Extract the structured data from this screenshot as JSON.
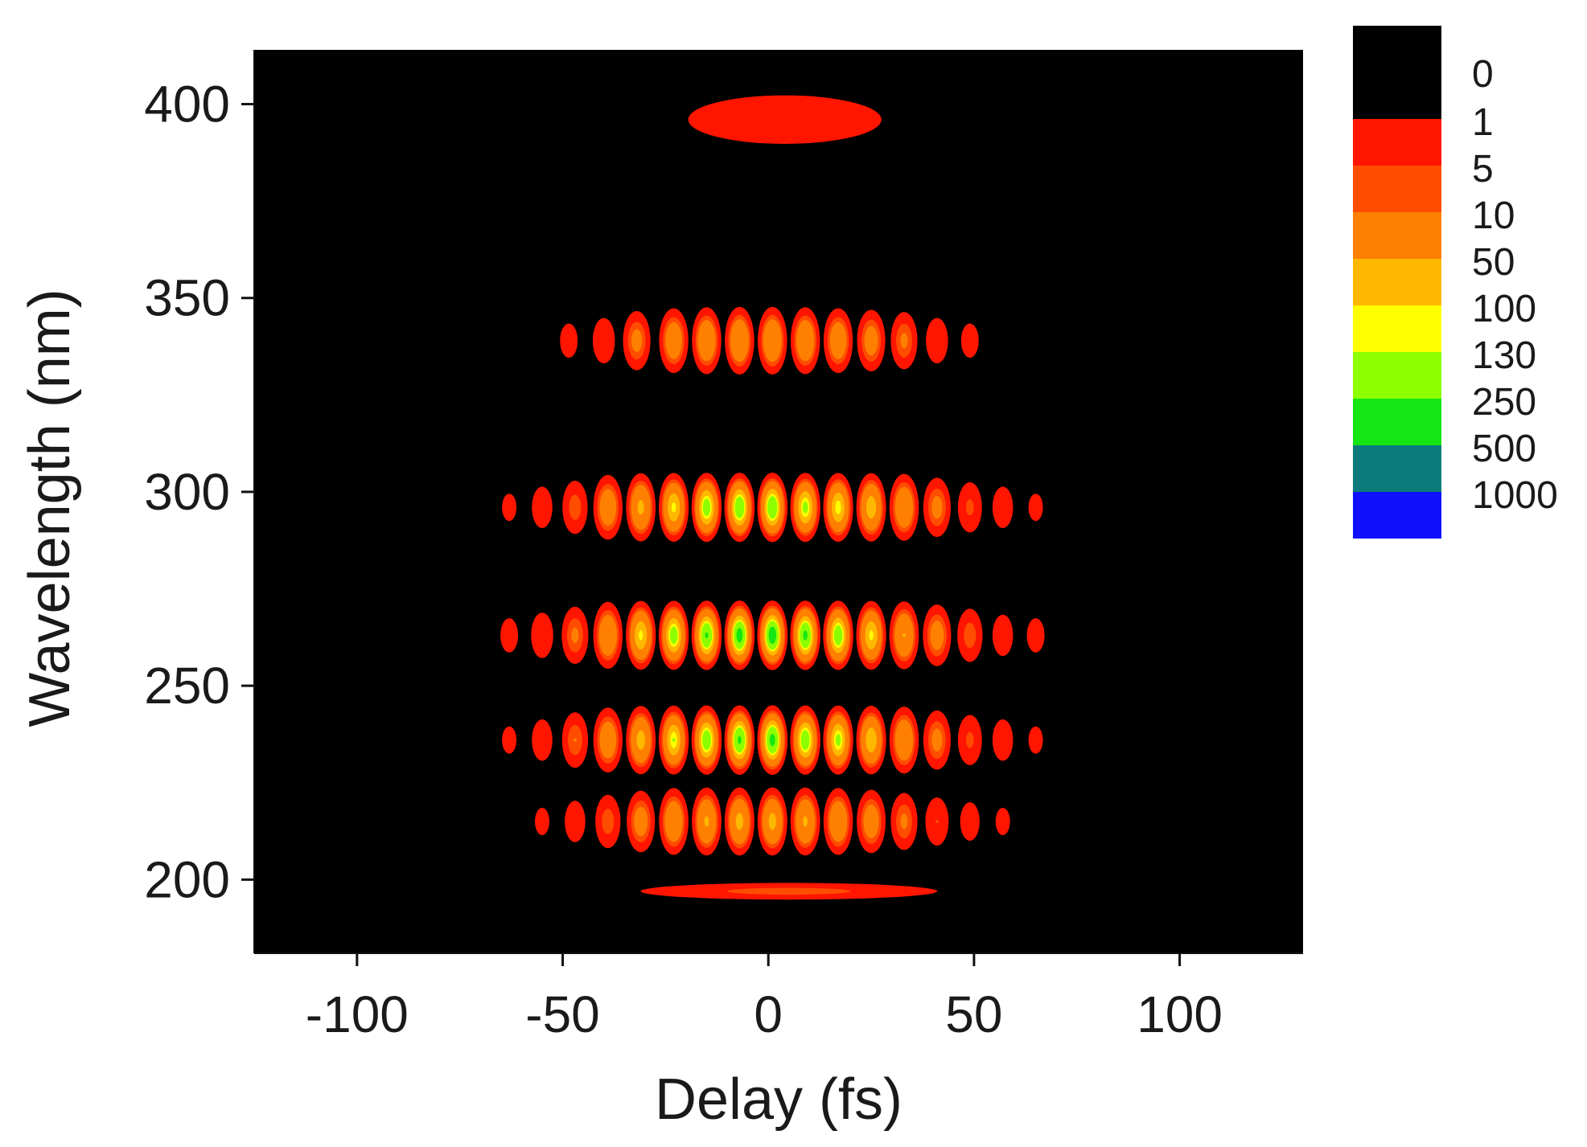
{
  "chart_data": {
    "type": "heatmap",
    "title": "",
    "xlabel": "Delay (fs)",
    "ylabel": "Wavelength (nm)",
    "xlim": [
      -125,
      130
    ],
    "ylim": [
      181,
      414
    ],
    "xticks": [
      -100,
      -50,
      0,
      50,
      100
    ],
    "yticks": [
      200,
      250,
      300,
      350,
      400
    ],
    "xtick_labels": [
      "-100",
      "-50",
      "0",
      "50",
      "100"
    ],
    "ytick_labels": [
      "200",
      "250",
      "300",
      "350",
      "400"
    ],
    "grid": false,
    "background_color": "#000000",
    "colorbar": {
      "position": "right",
      "boundaries": [
        "0",
        "1",
        "5",
        "10",
        "50",
        "100",
        "130",
        "250",
        "500",
        "1000"
      ],
      "level_colors": [
        "#000000",
        "#ff1500",
        "#ff4d00",
        "#ff8000",
        "#ffb800",
        "#ffff00",
        "#8cff00",
        "#14e614",
        "#0b7b7b",
        "#1010ff"
      ]
    },
    "bands": [
      {
        "wavelength": 396,
        "fringes": [
          {
            "delay": 4,
            "intensity": 3,
            "half_width": 30,
            "half_height": 8
          }
        ]
      },
      {
        "wavelength": 339,
        "fringes": [
          {
            "delay": -48.5,
            "intensity": 2
          },
          {
            "delay": -40,
            "intensity": 4
          },
          {
            "delay": -32,
            "intensity": 15
          },
          {
            "delay": -23,
            "intensity": 30
          },
          {
            "delay": -15,
            "intensity": 40
          },
          {
            "delay": -7,
            "intensity": 45
          },
          {
            "delay": 1,
            "intensity": 45
          },
          {
            "delay": 9,
            "intensity": 40
          },
          {
            "delay": 17,
            "intensity": 30
          },
          {
            "delay": 25,
            "intensity": 20
          },
          {
            "delay": 33,
            "intensity": 12
          },
          {
            "delay": 41,
            "intensity": 4
          },
          {
            "delay": 49,
            "intensity": 2
          }
        ]
      },
      {
        "wavelength": 296,
        "fringes": [
          {
            "delay": -63,
            "intensity": 1.5
          },
          {
            "delay": -55,
            "intensity": 3
          },
          {
            "delay": -47,
            "intensity": 8
          },
          {
            "delay": -39,
            "intensity": 30
          },
          {
            "delay": -31,
            "intensity": 60
          },
          {
            "delay": -23,
            "intensity": 110
          },
          {
            "delay": -15,
            "intensity": 180
          },
          {
            "delay": -7,
            "intensity": 220
          },
          {
            "delay": 1,
            "intensity": 230
          },
          {
            "delay": 9,
            "intensity": 150
          },
          {
            "delay": 17,
            "intensity": 120
          },
          {
            "delay": 25,
            "intensity": 80
          },
          {
            "delay": 33,
            "intensity": 40
          },
          {
            "delay": 41,
            "intensity": 15
          },
          {
            "delay": 49,
            "intensity": 6
          },
          {
            "delay": 57,
            "intensity": 3
          },
          {
            "delay": 65,
            "intensity": 1.5
          }
        ]
      },
      {
        "wavelength": 263,
        "fringes": [
          {
            "delay": -63,
            "intensity": 2
          },
          {
            "delay": -55,
            "intensity": 4
          },
          {
            "delay": -47,
            "intensity": 12
          },
          {
            "delay": -39,
            "intensity": 40
          },
          {
            "delay": -31,
            "intensity": 110
          },
          {
            "delay": -23,
            "intensity": 180
          },
          {
            "delay": -15,
            "intensity": 260
          },
          {
            "delay": -7,
            "intensity": 320
          },
          {
            "delay": 1,
            "intensity": 360
          },
          {
            "delay": 9,
            "intensity": 280
          },
          {
            "delay": 17,
            "intensity": 200
          },
          {
            "delay": 25,
            "intensity": 110
          },
          {
            "delay": 33,
            "intensity": 50
          },
          {
            "delay": 41,
            "intensity": 20
          },
          {
            "delay": 49,
            "intensity": 8
          },
          {
            "delay": 57,
            "intensity": 3
          },
          {
            "delay": 65,
            "intensity": 2
          }
        ]
      },
      {
        "wavelength": 236,
        "fringes": [
          {
            "delay": -63,
            "intensity": 1.5
          },
          {
            "delay": -55,
            "intensity": 3
          },
          {
            "delay": -47,
            "intensity": 10
          },
          {
            "delay": -39,
            "intensity": 30
          },
          {
            "delay": -31,
            "intensity": 70
          },
          {
            "delay": -23,
            "intensity": 130
          },
          {
            "delay": -15,
            "intensity": 200
          },
          {
            "delay": -7,
            "intensity": 270
          },
          {
            "delay": 1,
            "intensity": 300
          },
          {
            "delay": 9,
            "intensity": 200
          },
          {
            "delay": 17,
            "intensity": 150
          },
          {
            "delay": 25,
            "intensity": 90
          },
          {
            "delay": 33,
            "intensity": 40
          },
          {
            "delay": 41,
            "intensity": 15
          },
          {
            "delay": 49,
            "intensity": 6
          },
          {
            "delay": 57,
            "intensity": 3
          },
          {
            "delay": 65,
            "intensity": 1.5
          }
        ]
      },
      {
        "wavelength": 215,
        "fringes": [
          {
            "delay": -55,
            "intensity": 1.5
          },
          {
            "delay": -47,
            "intensity": 3
          },
          {
            "delay": -39,
            "intensity": 8
          },
          {
            "delay": -31,
            "intensity": 20
          },
          {
            "delay": -23,
            "intensity": 40
          },
          {
            "delay": -15,
            "intensity": 55
          },
          {
            "delay": -7,
            "intensity": 65
          },
          {
            "delay": 1,
            "intensity": 65
          },
          {
            "delay": 9,
            "intensity": 55
          },
          {
            "delay": 17,
            "intensity": 40
          },
          {
            "delay": 25,
            "intensity": 25
          },
          {
            "delay": 33,
            "intensity": 12
          },
          {
            "delay": 41,
            "intensity": 5
          },
          {
            "delay": 49,
            "intensity": 2.5
          },
          {
            "delay": 57,
            "intensity": 1.5
          }
        ]
      },
      {
        "wavelength": 197,
        "fringes": [
          {
            "delay": 5,
            "intensity": 7,
            "half_width": 42,
            "half_height": 2.5
          }
        ]
      }
    ]
  }
}
